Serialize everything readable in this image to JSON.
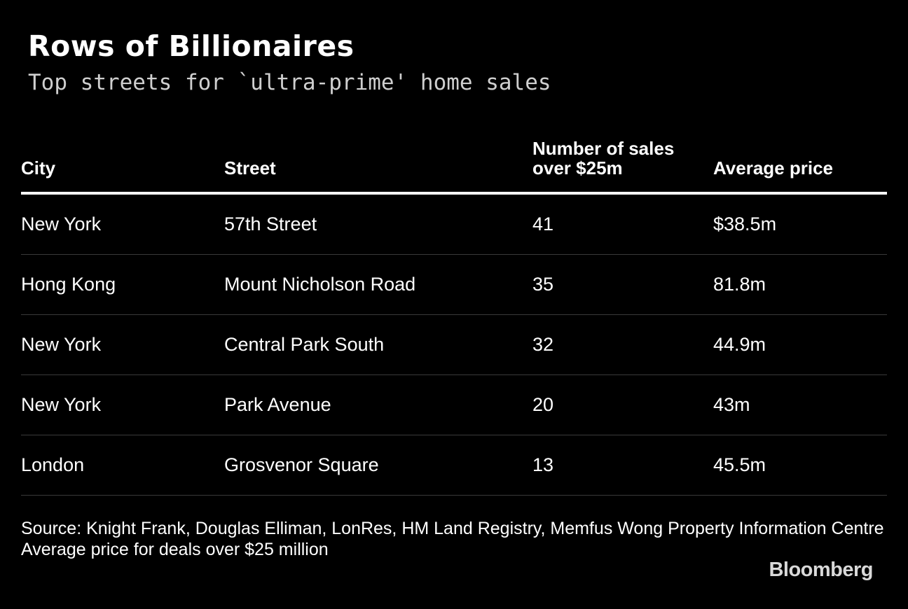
{
  "title": "Rows of Billionaires",
  "subtitle": "Top streets for `ultra-prime' home sales",
  "chart_data": {
    "type": "table",
    "columns": [
      "City",
      "Street",
      "Number of sales over $25m",
      "Average price"
    ],
    "column_header_lines": {
      "sales": [
        "Number of sales",
        "over $25m"
      ]
    },
    "rows": [
      {
        "city": "New York",
        "street": "57th Street",
        "sales": "41",
        "price": "$38.5m"
      },
      {
        "city": "Hong Kong",
        "street": "Mount Nicholson Road",
        "sales": "35",
        "price": "81.8m"
      },
      {
        "city": "New York",
        "street": "Central Park South",
        "sales": "32",
        "price": "44.9m"
      },
      {
        "city": "New York",
        "street": "Park Avenue",
        "sales": "20",
        "price": "43m"
      },
      {
        "city": "London",
        "street": "Grosvenor Square",
        "sales": "13",
        "price": "45.5m"
      }
    ]
  },
  "footer": {
    "source": "Source: Knight Frank, Douglas Elliman, LonRes, HM Land Registry, Memfus Wong Property Information Centre",
    "note": "Average price for deals over $25 million"
  },
  "brand": "Bloomberg"
}
